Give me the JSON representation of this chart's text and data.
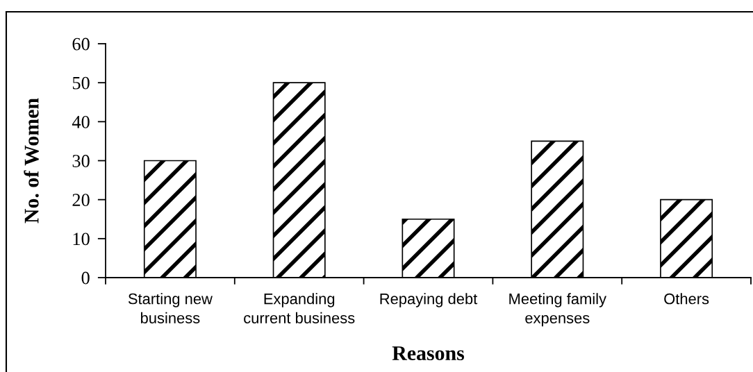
{
  "chart_data": {
    "type": "bar",
    "categories": [
      "Starting new\nbusiness",
      "Expanding\ncurrent business",
      "Repaying debt",
      "Meeting family\nexpenses",
      "Others"
    ],
    "values": [
      30,
      50,
      15,
      35,
      20
    ],
    "color": "#000000",
    "xlabel": "Reasons",
    "ylabel": "No. of Women",
    "ylim": [
      0,
      60
    ],
    "yticks": [
      0,
      10,
      20,
      30,
      40,
      50,
      60
    ],
    "grid": false
  }
}
